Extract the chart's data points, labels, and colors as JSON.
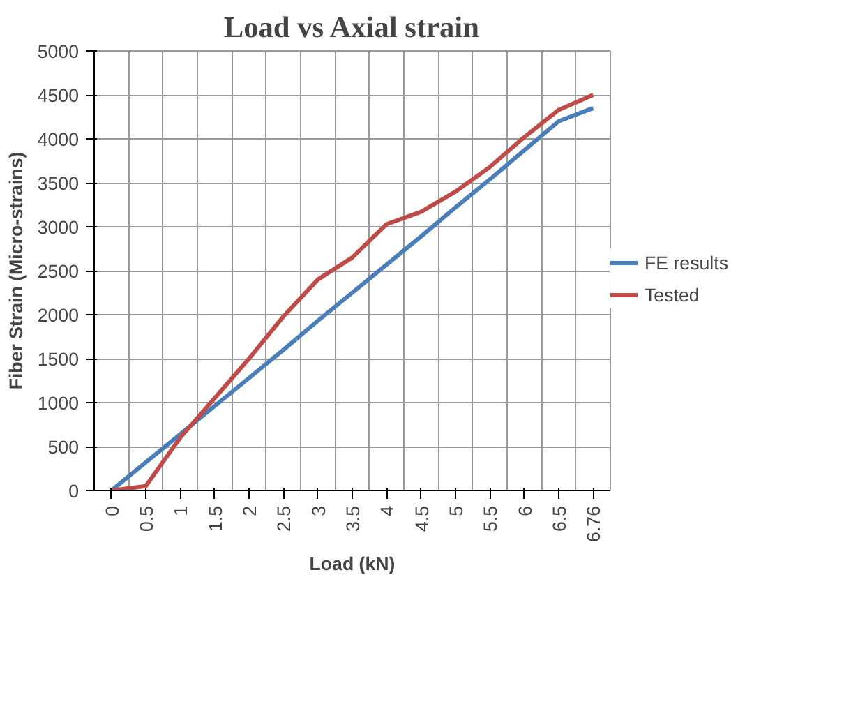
{
  "chart_data": {
    "type": "line",
    "title": "Load vs Axial strain",
    "xlabel": "Load (kN)",
    "ylabel": "Fiber Strain (Micro-strains)",
    "categories": [
      "0",
      "0.5",
      "1",
      "1.5",
      "2",
      "2.5",
      "3",
      "3.5",
      "4",
      "4.5",
      "5",
      "5.5",
      "6",
      "6.5",
      "6.76"
    ],
    "series": [
      {
        "name": "FE results",
        "color": "#4a7ebb",
        "values": [
          0,
          320,
          640,
          960,
          1280,
          1600,
          1930,
          2250,
          2570,
          2890,
          3220,
          3540,
          3870,
          4200,
          4350
        ]
      },
      {
        "name": "Tested",
        "color": "#be4b48",
        "values": [
          0,
          50,
          600,
          1050,
          1500,
          1980,
          2400,
          2650,
          3030,
          3170,
          3400,
          3680,
          4020,
          4330,
          4500
        ]
      }
    ],
    "ylim": [
      0,
      5000
    ],
    "yticks": [
      0,
      500,
      1000,
      1500,
      2000,
      2500,
      3000,
      3500,
      4000,
      4500,
      5000
    ],
    "grid": true,
    "legend": "right"
  }
}
